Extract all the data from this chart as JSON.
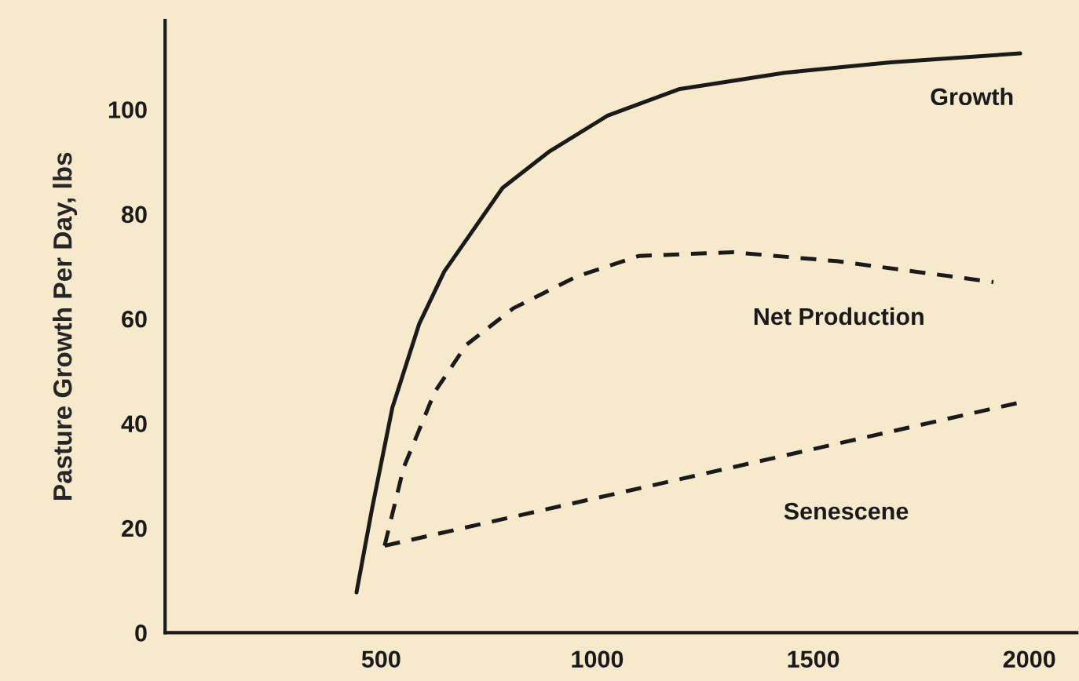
{
  "chart_data": {
    "type": "line",
    "ylabel": "Pasture Growth Per Day, lbs",
    "xlim": [
      0,
      2110
    ],
    "ylim": [
      0,
      117
    ],
    "xticks": [
      500,
      1000,
      1500,
      2000
    ],
    "yticks": [
      0,
      20,
      40,
      60,
      80,
      100
    ],
    "grid": false,
    "legend": false,
    "marker": "none",
    "series": [
      {
        "name": "Growth",
        "color": "#1a1a1a",
        "line_style": "solid",
        "x": [
          443,
          479,
          526,
          588,
          646,
          781,
          890,
          1024,
          1191,
          1434,
          1678,
          1979
        ],
        "values": [
          7.7,
          23.7,
          43,
          59,
          69,
          85,
          92,
          98.8,
          103.9,
          107,
          109,
          110.7
        ]
      },
      {
        "name": "Net Production",
        "color": "#1a1a1a",
        "line_style": "dashed",
        "x": [
          508,
          552,
          624,
          697,
          806,
          951,
          1097,
          1314,
          1554,
          1736,
          1917
        ],
        "values": [
          16.6,
          31.5,
          46,
          55,
          62,
          68,
          72,
          72.7,
          71,
          69,
          67
        ]
      },
      {
        "name": "Senescene",
        "color": "#1a1a1a",
        "line_style": "dashed",
        "x": [
          508,
          1979
        ],
        "values": [
          16.6,
          44
        ]
      }
    ]
  }
}
